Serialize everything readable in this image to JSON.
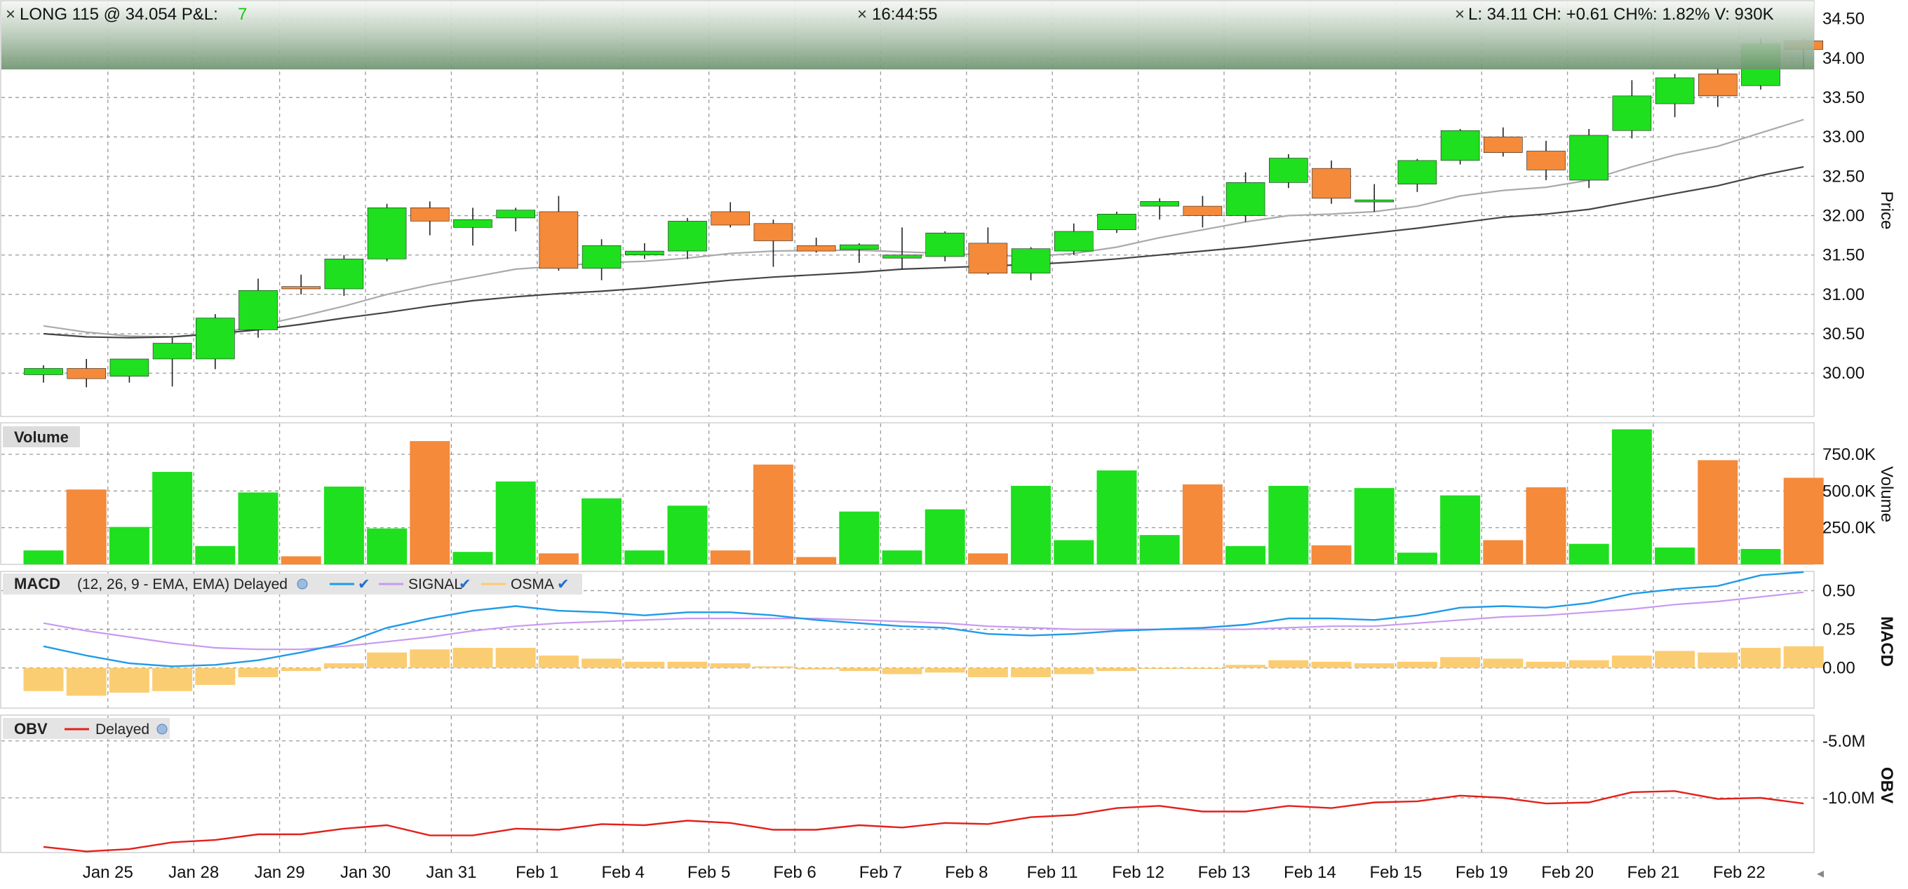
{
  "header": {
    "position_text": "LONG 115 @ 34.054 P&L:",
    "pnl_value": "7",
    "time": "16:44:55",
    "quote": "L: 34.11 CH: +0.61 CH%: 1.82% V: 930K"
  },
  "colors": {
    "up": "#1ee01e",
    "down": "#f48a3a",
    "ma_fast": "#aaaaaa",
    "ma_slow": "#444444",
    "macd": "#1f9be8",
    "signal": "#c89af0",
    "osma": "#fbcd72",
    "obv": "#e3201b",
    "grid": "#9a9a9a"
  },
  "panels": {
    "price": {
      "label": "Price"
    },
    "volume": {
      "label": "Volume",
      "tag": "Volume"
    },
    "macd": {
      "label": "MACD",
      "tag": "MACD",
      "params": "(12, 26, 9 - EMA, EMA) Delayed",
      "legend_signal": "SIGNAL",
      "legend_osma": "OSMA"
    },
    "obv": {
      "label": "OBV",
      "tag": "OBV",
      "legend": "Delayed"
    }
  },
  "chart_data": [
    {
      "type": "candlestick",
      "ylabel": "Price",
      "ylim": [
        29.45,
        34.72
      ],
      "y_ticks": [
        "30.00",
        "30.50",
        "31.00",
        "31.50",
        "32.00",
        "32.50",
        "33.00",
        "33.50",
        "34.00",
        "34.50"
      ],
      "y_tick_values": [
        30.0,
        30.5,
        31.0,
        31.5,
        32.0,
        32.5,
        33.0,
        33.5,
        34.0,
        34.5
      ],
      "x_ticks": [
        "Jan 25",
        "Jan 28",
        "Jan 29",
        "Jan 30",
        "Jan 31",
        "Feb 1",
        "Feb 4",
        "Feb 5",
        "Feb 6",
        "Feb 7",
        "Feb 8",
        "Feb 11",
        "Feb 12",
        "Feb 13",
        "Feb 14",
        "Feb 15",
        "Feb 19",
        "Feb 20",
        "Feb 21",
        "Feb 22"
      ],
      "x_tick_bar_index": [
        2,
        4,
        6,
        8,
        10,
        12,
        14,
        16,
        18,
        20,
        22,
        24,
        26,
        28,
        30,
        32,
        34,
        36,
        38,
        40
      ],
      "candles": [
        {
          "o": 29.98,
          "h": 30.1,
          "l": 29.88,
          "c": 30.06
        },
        {
          "o": 30.06,
          "h": 30.18,
          "l": 29.82,
          "c": 29.93
        },
        {
          "o": 29.96,
          "h": 30.18,
          "l": 29.88,
          "c": 30.18
        },
        {
          "o": 30.18,
          "h": 30.45,
          "l": 29.83,
          "c": 30.38
        },
        {
          "o": 30.18,
          "h": 30.75,
          "l": 30.05,
          "c": 30.7
        },
        {
          "o": 30.55,
          "h": 31.2,
          "l": 30.45,
          "c": 31.05
        },
        {
          "o": 31.1,
          "h": 31.25,
          "l": 31.0,
          "c": 31.07
        },
        {
          "o": 31.07,
          "h": 31.5,
          "l": 30.98,
          "c": 31.45
        },
        {
          "o": 31.45,
          "h": 32.15,
          "l": 31.42,
          "c": 32.1
        },
        {
          "o": 32.1,
          "h": 32.18,
          "l": 31.75,
          "c": 31.93
        },
        {
          "o": 31.85,
          "h": 32.1,
          "l": 31.62,
          "c": 31.95
        },
        {
          "o": 31.97,
          "h": 32.1,
          "l": 31.8,
          "c": 32.07
        },
        {
          "o": 32.05,
          "h": 32.25,
          "l": 31.3,
          "c": 31.33
        },
        {
          "o": 31.33,
          "h": 31.7,
          "l": 31.18,
          "c": 31.62
        },
        {
          "o": 31.5,
          "h": 31.65,
          "l": 31.45,
          "c": 31.55
        },
        {
          "o": 31.55,
          "h": 31.97,
          "l": 31.45,
          "c": 31.93
        },
        {
          "o": 32.05,
          "h": 32.17,
          "l": 31.85,
          "c": 31.88
        },
        {
          "o": 31.9,
          "h": 31.95,
          "l": 31.35,
          "c": 31.68
        },
        {
          "o": 31.62,
          "h": 31.72,
          "l": 31.53,
          "c": 31.55
        },
        {
          "o": 31.57,
          "h": 31.65,
          "l": 31.4,
          "c": 31.63
        },
        {
          "o": 31.46,
          "h": 31.85,
          "l": 31.32,
          "c": 31.5
        },
        {
          "o": 31.48,
          "h": 31.8,
          "l": 31.42,
          "c": 31.78
        },
        {
          "o": 31.65,
          "h": 31.85,
          "l": 31.25,
          "c": 31.27
        },
        {
          "o": 31.27,
          "h": 31.6,
          "l": 31.18,
          "c": 31.58
        },
        {
          "o": 31.55,
          "h": 31.9,
          "l": 31.5,
          "c": 31.8
        },
        {
          "o": 31.82,
          "h": 32.05,
          "l": 31.78,
          "c": 32.02
        },
        {
          "o": 32.12,
          "h": 32.22,
          "l": 31.95,
          "c": 32.18
        },
        {
          "o": 32.12,
          "h": 32.25,
          "l": 31.85,
          "c": 32.0
        },
        {
          "o": 32.0,
          "h": 32.55,
          "l": 31.92,
          "c": 32.42
        },
        {
          "o": 32.42,
          "h": 32.78,
          "l": 32.35,
          "c": 32.73
        },
        {
          "o": 32.6,
          "h": 32.7,
          "l": 32.15,
          "c": 32.22
        },
        {
          "o": 32.18,
          "h": 32.4,
          "l": 32.05,
          "c": 32.2
        },
        {
          "o": 32.4,
          "h": 32.72,
          "l": 32.3,
          "c": 32.7
        },
        {
          "o": 32.7,
          "h": 33.1,
          "l": 32.65,
          "c": 33.08
        },
        {
          "o": 33.0,
          "h": 33.12,
          "l": 32.75,
          "c": 32.8
        },
        {
          "o": 32.82,
          "h": 32.95,
          "l": 32.45,
          "c": 32.58
        },
        {
          "o": 32.45,
          "h": 33.1,
          "l": 32.35,
          "c": 33.02
        },
        {
          "o": 33.08,
          "h": 33.72,
          "l": 32.98,
          "c": 33.52
        },
        {
          "o": 33.42,
          "h": 33.8,
          "l": 33.25,
          "c": 33.75
        },
        {
          "o": 33.8,
          "h": 33.88,
          "l": 33.38,
          "c": 33.52
        },
        {
          "o": 33.65,
          "h": 34.25,
          "l": 33.6,
          "c": 34.18
        },
        {
          "o": 34.22,
          "h": 34.25,
          "l": 33.88,
          "c": 34.11
        }
      ],
      "ma_fast": [
        30.6,
        30.52,
        30.47,
        30.46,
        30.5,
        30.6,
        30.72,
        30.85,
        31.0,
        31.12,
        31.22,
        31.32,
        31.36,
        31.4,
        31.42,
        31.46,
        31.52,
        31.55,
        31.56,
        31.56,
        31.54,
        31.52,
        31.5,
        31.48,
        31.52,
        31.6,
        31.72,
        31.82,
        31.92,
        32.0,
        32.02,
        32.05,
        32.12,
        32.25,
        32.32,
        32.36,
        32.45,
        32.62,
        32.77,
        32.88,
        33.05,
        33.22
      ],
      "ma_slow": [
        30.5,
        30.46,
        30.45,
        30.46,
        30.5,
        30.55,
        30.62,
        30.7,
        30.77,
        30.85,
        30.92,
        30.97,
        31.01,
        31.04,
        31.08,
        31.13,
        31.18,
        31.22,
        31.25,
        31.28,
        31.32,
        31.34,
        31.36,
        31.38,
        31.41,
        31.45,
        31.5,
        31.55,
        31.6,
        31.66,
        31.72,
        31.78,
        31.84,
        31.91,
        31.98,
        32.02,
        32.08,
        32.18,
        32.28,
        32.38,
        32.51,
        32.62
      ]
    },
    {
      "type": "bar",
      "ylabel": "Volume",
      "ylim": [
        0,
        960000
      ],
      "y_ticks": [
        "250.0K",
        "500.0K",
        "750.0K"
      ],
      "y_tick_values": [
        250000,
        500000,
        750000
      ],
      "values": [
        95000,
        510000,
        255000,
        630000,
        125000,
        490000,
        55000,
        530000,
        245000,
        840000,
        85000,
        565000,
        75000,
        450000,
        95000,
        400000,
        95000,
        680000,
        50000,
        360000,
        95000,
        375000,
        75000,
        535000,
        165000,
        640000,
        200000,
        545000,
        125000,
        535000,
        130000,
        520000,
        80000,
        470000,
        165000,
        525000,
        140000,
        920000,
        115000,
        710000,
        105000,
        590000
      ]
    },
    {
      "type": "line",
      "ylabel": "MACD",
      "ylim": [
        -0.26,
        0.62
      ],
      "y_ticks": [
        "0.00",
        "0.25",
        "0.50"
      ],
      "y_tick_values": [
        0.0,
        0.25,
        0.5
      ],
      "series": [
        {
          "name": "MACD",
          "values": [
            0.14,
            0.08,
            0.03,
            0.01,
            0.02,
            0.05,
            0.1,
            0.16,
            0.26,
            0.32,
            0.37,
            0.4,
            0.37,
            0.36,
            0.34,
            0.36,
            0.36,
            0.34,
            0.31,
            0.29,
            0.27,
            0.26,
            0.22,
            0.21,
            0.22,
            0.24,
            0.25,
            0.26,
            0.28,
            0.32,
            0.32,
            0.31,
            0.34,
            0.39,
            0.4,
            0.39,
            0.42,
            0.48,
            0.51,
            0.53,
            0.6,
            0.62
          ]
        },
        {
          "name": "SIGNAL",
          "values": [
            0.29,
            0.24,
            0.2,
            0.16,
            0.13,
            0.12,
            0.12,
            0.14,
            0.17,
            0.2,
            0.24,
            0.27,
            0.29,
            0.3,
            0.31,
            0.32,
            0.32,
            0.32,
            0.32,
            0.31,
            0.3,
            0.29,
            0.27,
            0.26,
            0.25,
            0.25,
            0.25,
            0.25,
            0.25,
            0.26,
            0.27,
            0.27,
            0.29,
            0.31,
            0.33,
            0.34,
            0.36,
            0.38,
            0.41,
            0.43,
            0.46,
            0.49
          ]
        },
        {
          "name": "OSMA",
          "values": [
            -0.15,
            -0.18,
            -0.16,
            -0.15,
            -0.11,
            -0.06,
            -0.02,
            0.03,
            0.1,
            0.12,
            0.13,
            0.13,
            0.08,
            0.06,
            0.04,
            0.04,
            0.03,
            0.01,
            -0.01,
            -0.02,
            -0.04,
            -0.03,
            -0.06,
            -0.06,
            -0.04,
            -0.02,
            0.0,
            0.0,
            0.02,
            0.05,
            0.04,
            0.03,
            0.04,
            0.07,
            0.06,
            0.04,
            0.05,
            0.08,
            0.11,
            0.1,
            0.13,
            0.14
          ]
        }
      ]
    },
    {
      "type": "line",
      "ylabel": "OBV",
      "ylim": [
        -14800000,
        -2800000
      ],
      "y_ticks": [
        "-10.0M",
        "-5.0M"
      ],
      "y_tick_values": [
        -10000000,
        -5000000
      ],
      "series": [
        {
          "name": "OBV",
          "values": [
            -14300000.0,
            -14700000.0,
            -14500000.0,
            -13900000.0,
            -13700000.0,
            -13200000.0,
            -13200000.0,
            -12700000.0,
            -12400000.0,
            -13300000.0,
            -13300000.0,
            -12700000.0,
            -12800000.0,
            -12300000.0,
            -12400000.0,
            -12000000.0,
            -12200000.0,
            -12800000.0,
            -12800000.0,
            -12400000.0,
            -12600000.0,
            -12200000.0,
            -12300000.0,
            -11700000.0,
            -11500000.0,
            -10900000.0,
            -10700000.0,
            -11200000.0,
            -11200000.0,
            -10700000.0,
            -10900000.0,
            -10400000.0,
            -10300000.0,
            -9800000.0,
            -10000000.0,
            -10500000.0,
            -10400000.0,
            -9500000.0,
            -9400000.0,
            -10100000.0,
            -10000000.0,
            -10500000.0
          ]
        }
      ]
    }
  ]
}
